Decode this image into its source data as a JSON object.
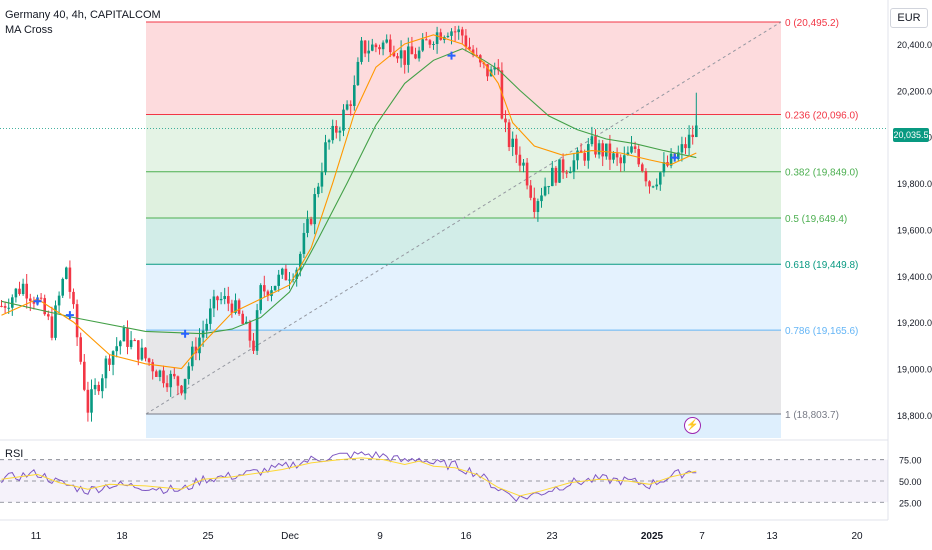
{
  "chart_data": {
    "type": "candlestick",
    "symbol_title": "Germany 40, 4h, CAPITALCOM",
    "indicator_name": "MA Cross",
    "currency": "EUR",
    "last_price": "20,035.5",
    "y_axis": {
      "range": [
        18700,
        20590
      ],
      "ticks": [
        "20,400.0",
        "20,200.0",
        "20,000.0",
        "19,800.0",
        "19,600.0",
        "19,400.0",
        "19,200.0",
        "19,000.0",
        "18,800.0"
      ]
    },
    "x_axis": {
      "ticks": [
        "11",
        "18",
        "25",
        "Dec",
        "9",
        "16",
        "23",
        "2025",
        "7",
        "13",
        "20"
      ]
    },
    "fibonacci": [
      {
        "label": "0 (20,495.2)",
        "value": 20495.2
      },
      {
        "label": "0.236 (20,096.0)",
        "value": 20096.0
      },
      {
        "label": "0.382 (19,849.0)",
        "value": 19849.0
      },
      {
        "label": "0.5 (19,649.4)",
        "value": 19649.4
      },
      {
        "label": "0.618 (19,449.8)",
        "value": 19449.8
      },
      {
        "label": "0.786 (19,165.6)",
        "value": 19165.6
      },
      {
        "label": "1 (18,803.7)",
        "value": 18803.7
      }
    ],
    "fib_colors": [
      "#f23645",
      "#f23645",
      "#4caf50",
      "#4caf50",
      "#089981",
      "#64b5f6",
      "#787b86"
    ],
    "series_colors": {
      "up": "#089981",
      "down": "#f23645",
      "ma_fast": "#ff9800",
      "ma_slow": "#43a047",
      "rsi": "#7e57c2",
      "rsi_ma": "#fdd835"
    },
    "close_path": [
      [
        0,
        19270
      ],
      [
        6,
        19360
      ],
      [
        10,
        19290
      ],
      [
        14,
        19170
      ],
      [
        18,
        19440
      ],
      [
        24,
        18830
      ],
      [
        30,
        19060
      ],
      [
        34,
        19140
      ],
      [
        44,
        18980
      ],
      [
        50,
        18930
      ],
      [
        54,
        19100
      ],
      [
        60,
        19300
      ],
      [
        64,
        19280
      ],
      [
        70,
        19100
      ],
      [
        72,
        19330
      ],
      [
        75,
        19360
      ],
      [
        82,
        19440
      ],
      [
        86,
        19660
      ],
      [
        90,
        19950
      ],
      [
        94,
        20060
      ],
      [
        98,
        20200
      ],
      [
        100,
        20380
      ],
      [
        104,
        20390
      ],
      [
        108,
        20410
      ],
      [
        112,
        20340
      ],
      [
        116,
        20360
      ],
      [
        120,
        20440
      ],
      [
        124,
        20470
      ],
      [
        128,
        20440
      ],
      [
        130,
        20380
      ],
      [
        133,
        20300
      ],
      [
        136,
        20270
      ],
      [
        138,
        20330
      ],
      [
        139,
        20060
      ],
      [
        141,
        19980
      ],
      [
        145,
        19880
      ],
      [
        148,
        19720
      ],
      [
        152,
        19820
      ],
      [
        156,
        19870
      ],
      [
        160,
        19900
      ],
      [
        164,
        19960
      ],
      [
        168,
        19930
      ],
      [
        172,
        19880
      ],
      [
        176,
        19950
      ],
      [
        180,
        19800
      ],
      [
        184,
        19860
      ],
      [
        188,
        19920
      ],
      [
        193,
        20030
      ]
    ],
    "ma_fast_path": [
      [
        0,
        19230
      ],
      [
        10,
        19300
      ],
      [
        20,
        19200
      ],
      [
        30,
        19060
      ],
      [
        40,
        19020
      ],
      [
        50,
        19000
      ],
      [
        56,
        19110
      ],
      [
        64,
        19240
      ],
      [
        72,
        19300
      ],
      [
        80,
        19360
      ],
      [
        86,
        19520
      ],
      [
        92,
        19800
      ],
      [
        98,
        20100
      ],
      [
        104,
        20300
      ],
      [
        112,
        20400
      ],
      [
        120,
        20440
      ],
      [
        128,
        20400
      ],
      [
        134,
        20320
      ],
      [
        138,
        20230
      ],
      [
        142,
        20060
      ],
      [
        148,
        19960
      ],
      [
        156,
        19920
      ],
      [
        164,
        19940
      ],
      [
        172,
        19930
      ],
      [
        180,
        19900
      ],
      [
        186,
        19880
      ],
      [
        193,
        19930
      ]
    ],
    "ma_slow_path": [
      [
        0,
        19290
      ],
      [
        20,
        19220
      ],
      [
        40,
        19160
      ],
      [
        56,
        19150
      ],
      [
        64,
        19170
      ],
      [
        72,
        19220
      ],
      [
        80,
        19330
      ],
      [
        88,
        19560
      ],
      [
        96,
        19800
      ],
      [
        104,
        20050
      ],
      [
        112,
        20230
      ],
      [
        120,
        20330
      ],
      [
        128,
        20380
      ],
      [
        134,
        20330
      ],
      [
        138,
        20290
      ],
      [
        144,
        20200
      ],
      [
        152,
        20090
      ],
      [
        160,
        20030
      ],
      [
        168,
        19990
      ],
      [
        176,
        19970
      ],
      [
        184,
        19940
      ],
      [
        193,
        19910
      ]
    ],
    "cross_markers": [
      [
        10,
        19290,
        "down"
      ],
      [
        19,
        19230,
        "down"
      ],
      [
        51,
        19150,
        "up"
      ],
      [
        125,
        20350,
        "down"
      ],
      [
        187,
        19910,
        "down"
      ]
    ],
    "rsi": {
      "label": "RSI",
      "levels": [
        "75.00",
        "50.00",
        "25.00"
      ],
      "path": [
        [
          0,
          52
        ],
        [
          10,
          58
        ],
        [
          16,
          48
        ],
        [
          24,
          40
        ],
        [
          30,
          46
        ],
        [
          40,
          44
        ],
        [
          50,
          40
        ],
        [
          56,
          52
        ],
        [
          64,
          55
        ],
        [
          72,
          60
        ],
        [
          78,
          64
        ],
        [
          86,
          72
        ],
        [
          94,
          76
        ],
        [
          100,
          78
        ],
        [
          106,
          76
        ],
        [
          112,
          70
        ],
        [
          116,
          74
        ],
        [
          120,
          68
        ],
        [
          126,
          66
        ],
        [
          132,
          58
        ],
        [
          138,
          42
        ],
        [
          144,
          32
        ],
        [
          150,
          38
        ],
        [
          158,
          48
        ],
        [
          166,
          52
        ],
        [
          174,
          50
        ],
        [
          180,
          46
        ],
        [
          186,
          55
        ],
        [
          193,
          62
        ]
      ]
    }
  }
}
